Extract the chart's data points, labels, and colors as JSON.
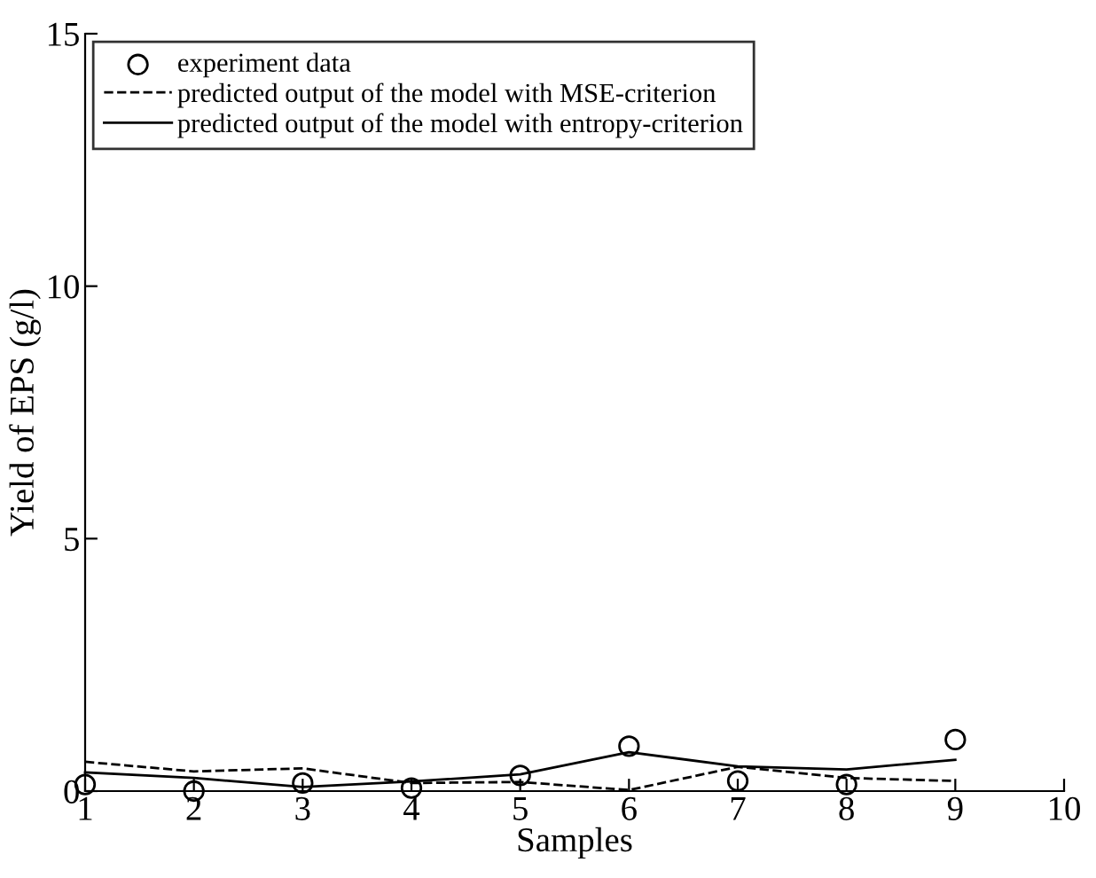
{
  "chart_data": {
    "type": "line",
    "xlabel": "Samples",
    "ylabel": "Yield of EPS (g/l)",
    "x": [
      1,
      2,
      3,
      4,
      5,
      6,
      7,
      8,
      9
    ],
    "series": [
      {
        "name": "experiment data",
        "type": "scatter",
        "color": "#000000",
        "marker": "circle",
        "values": [
          0.13,
          0,
          0.16,
          0.06,
          0.31,
          0.89,
          0.2,
          0.13,
          1.02
        ]
      },
      {
        "name": "predicted output of the model with MSE-criterion",
        "color": "#000000",
        "line_style": "dashed",
        "values": [
          0.58,
          0.39,
          0.45,
          0.16,
          0.18,
          0.02,
          0.48,
          0.26,
          0.2
        ]
      },
      {
        "name": "predicted output of the model with entropy-criterion",
        "color": "#000000",
        "line_style": "solid",
        "values": [
          0.37,
          0.26,
          0.08,
          0.19,
          0.33,
          0.77,
          0.49,
          0.43,
          0.62
        ]
      }
    ],
    "xlim": [
      1,
      10
    ],
    "xticks": [
      1,
      2,
      3,
      4,
      5,
      6,
      7,
      8,
      9,
      10
    ],
    "ylim": [
      0,
      15
    ],
    "yticks": [
      0,
      5,
      10,
      15
    ],
    "legend": "top left",
    "grid": false
  }
}
